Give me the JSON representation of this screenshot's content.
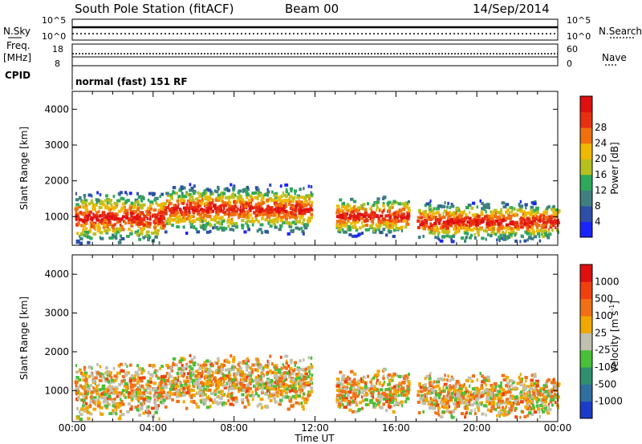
{
  "header": {
    "station": "South Pole Station (fitACF)",
    "beam": "Beam 00",
    "date": "14/Sep/2014"
  },
  "top_panels": {
    "nsky_label": "N.Sky",
    "nsearch_label": "N.Search",
    "noise_ticks_left": [
      "10^5",
      "10^0"
    ],
    "noise_ticks_right": [
      "10^5",
      "10^0"
    ],
    "freq_label": "Freq.",
    "freq_unit": "[MHz]",
    "freq_ticks": [
      "18",
      "8"
    ],
    "nave_label": "Nave",
    "nave_ticks": [
      "60",
      "0"
    ],
    "cpid_label": "CPID",
    "cpid_value": "normal (fast) 151 RF"
  },
  "axes": {
    "ylabel": "Slant Range [km]",
    "xlabel": "Time UT",
    "xticks": [
      "00:00",
      "04:00",
      "08:00",
      "12:00",
      "16:00",
      "20:00",
      "00:00"
    ],
    "yticks": [
      "1000",
      "2000",
      "3000",
      "4000"
    ]
  },
  "colorbars": {
    "power": {
      "label": "Power [dB]",
      "ticks": [
        "4",
        "8",
        "12",
        "16",
        "20",
        "24",
        "28"
      ],
      "colors": [
        "#1a24ff",
        "#2d4fa8",
        "#3f7f7f",
        "#2fa85a",
        "#b8c020",
        "#f0b800",
        "#f07010",
        "#e83010",
        "#e01010"
      ]
    },
    "velocity": {
      "label": "Velocity [m s^-1]",
      "ticks": [
        "1000",
        "500",
        "100",
        "25",
        "-25",
        "-100",
        "-500",
        "-1000"
      ],
      "colors": [
        "#1a3cc8",
        "#2f6fa0",
        "#2f8f6f",
        "#48c038",
        "#c0c0b0",
        "#f0a800",
        "#f07018",
        "#f04010",
        "#e01010"
      ]
    }
  },
  "chart_data": [
    {
      "type": "heatmap",
      "title": "Power",
      "x_range_hours": [
        0,
        24
      ],
      "y_range_km": [
        200,
        4500
      ],
      "colorbar_range_db": [
        0,
        30
      ],
      "description_note": ""
    },
    {
      "type": "heatmap",
      "title": "Velocity",
      "x_range_hours": [
        0,
        24
      ],
      "y_range_km": [
        200,
        4500
      ],
      "colorbar_range_ms": [
        -1000,
        1000
      ]
    }
  ]
}
